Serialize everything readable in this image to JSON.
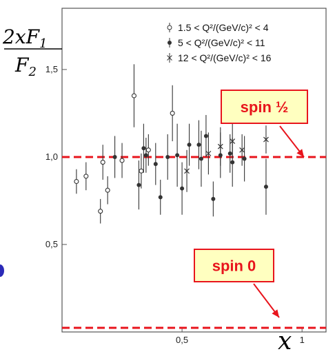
{
  "chart_data": {
    "type": "scatter",
    "ylabel": {
      "num": "2xF1",
      "den": "F2"
    },
    "xlabel": "x",
    "xlim": [
      0,
      1.1
    ],
    "ylim": [
      0,
      1.85
    ],
    "x_ticks": [
      {
        "value": 0.5,
        "label": "0,5"
      },
      {
        "value": 1.0,
        "label": "1"
      }
    ],
    "y_ticks": [
      {
        "value": 0.5,
        "label": "0,5"
      },
      {
        "value": 1.0,
        "label": "1,0"
      },
      {
        "value": 1.5,
        "label": "1,5"
      }
    ],
    "legend": {
      "placement": "top-right",
      "entries": [
        {
          "marker": "open-circle",
          "label": "1.5 < Q²/(GeV/c)² < 4"
        },
        {
          "marker": "filled-circle",
          "label": "5 < Q²/(GeV/c)² < 11"
        },
        {
          "marker": "cross",
          "label": "12 < Q²/(GeV/c)² < 16"
        }
      ]
    },
    "series": [
      {
        "marker": "open-circle",
        "points": [
          {
            "x": 0.06,
            "y": 0.86,
            "err": 0.07
          },
          {
            "x": 0.1,
            "y": 0.89,
            "err": 0.08
          },
          {
            "x": 0.16,
            "y": 0.69,
            "err": 0.07
          },
          {
            "x": 0.17,
            "y": 0.97,
            "err": 0.1
          },
          {
            "x": 0.19,
            "y": 0.81,
            "err": 0.08
          },
          {
            "x": 0.25,
            "y": 0.98,
            "err": 0.1
          },
          {
            "x": 0.3,
            "y": 1.35,
            "err": 0.18
          },
          {
            "x": 0.33,
            "y": 0.92,
            "err": 0.1
          },
          {
            "x": 0.36,
            "y": 1.04,
            "err": 0.09
          },
          {
            "x": 0.46,
            "y": 1.25,
            "err": 0.16
          }
        ]
      },
      {
        "marker": "filled-circle",
        "points": [
          {
            "x": 0.22,
            "y": 1.0,
            "err": 0.12
          },
          {
            "x": 0.32,
            "y": 0.84,
            "err": 0.14
          },
          {
            "x": 0.34,
            "y": 1.05,
            "err": 0.14
          },
          {
            "x": 0.35,
            "y": 1.01,
            "err": 0.1
          },
          {
            "x": 0.39,
            "y": 0.96,
            "err": 0.12
          },
          {
            "x": 0.41,
            "y": 0.77,
            "err": 0.1
          },
          {
            "x": 0.44,
            "y": 1.0,
            "err": 0.13
          },
          {
            "x": 0.48,
            "y": 1.01,
            "err": 0.18
          },
          {
            "x": 0.5,
            "y": 0.82,
            "err": 0.15
          },
          {
            "x": 0.53,
            "y": 1.07,
            "err": 0.12
          },
          {
            "x": 0.57,
            "y": 1.07,
            "err": 0.14
          },
          {
            "x": 0.58,
            "y": 0.99,
            "err": 0.16
          },
          {
            "x": 0.6,
            "y": 1.12,
            "err": 0.12
          },
          {
            "x": 0.63,
            "y": 0.76,
            "err": 0.1
          },
          {
            "x": 0.66,
            "y": 1.01,
            "err": 0.13
          },
          {
            "x": 0.7,
            "y": 1.02,
            "err": 0.11
          },
          {
            "x": 0.71,
            "y": 0.97,
            "err": 0.14
          },
          {
            "x": 0.76,
            "y": 0.99,
            "err": 0.13
          },
          {
            "x": 0.85,
            "y": 0.83,
            "err": 0.16
          }
        ]
      },
      {
        "marker": "cross",
        "points": [
          {
            "x": 0.52,
            "y": 0.92,
            "err": 0.12
          },
          {
            "x": 0.61,
            "y": 1.02,
            "err": 0.12
          },
          {
            "x": 0.66,
            "y": 1.06,
            "err": 0.11
          },
          {
            "x": 0.71,
            "y": 1.09,
            "err": 0.1
          },
          {
            "x": 0.75,
            "y": 1.04,
            "err": 0.09
          },
          {
            "x": 0.85,
            "y": 1.1,
            "err": 0.08
          }
        ]
      }
    ],
    "reference_lines": [
      {
        "y": 1.0,
        "color": "#e8141c",
        "style": "dashed"
      },
      {
        "y": 0.0,
        "color": "#e8141c",
        "style": "dashed"
      }
    ],
    "annotations": [
      {
        "text": "spin ½",
        "target_y": 1.0,
        "box_fill": "#ffffc0",
        "color": "#e8141c"
      },
      {
        "text": "spin 0",
        "target_y": 0.0,
        "box_fill": "#ffffc0",
        "color": "#e8141c"
      }
    ]
  },
  "colors": {
    "accent_red": "#e8141c",
    "callout_fill": "#ffffc0",
    "frame": "#555555",
    "marker": "#333333"
  }
}
